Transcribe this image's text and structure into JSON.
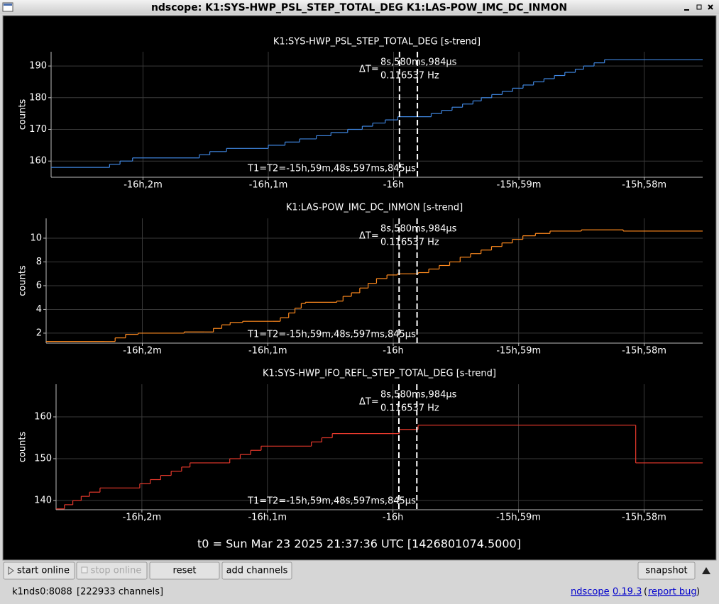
{
  "window": {
    "title": "ndscope: K1:SYS-HWP_PSL_STEP_TOTAL_DEG K1:LAS-POW_IMC_DC_INMON"
  },
  "chart_data": [
    {
      "type": "line",
      "drawstyle": "steps-post",
      "title": "K1:SYS-HWP_PSL_STEP_TOTAL_DEG [s-trend]",
      "ylabel": "counts",
      "color": "#3f86e0",
      "grid": true,
      "xlim": [
        -57764,
        -57452
      ],
      "xticks": [
        {
          "value": -57720,
          "label": "-16h,2m"
        },
        {
          "value": -57660,
          "label": "-16h,1m"
        },
        {
          "value": -57600,
          "label": "-16h"
        },
        {
          "value": -57540,
          "label": "-15h,59m"
        },
        {
          "value": -57480,
          "label": "-15h,58m"
        }
      ],
      "ylim": [
        154.9,
        194.5
      ],
      "yticks": [
        160,
        170,
        180,
        190
      ],
      "x": [
        -57764,
        -57736,
        -57731,
        -57725,
        -57693,
        -57688,
        -57680,
        -57660,
        -57652,
        -57645,
        -57637,
        -57630,
        -57622,
        -57615,
        -57610,
        -57604,
        -57598,
        -57582,
        -57577,
        -57572,
        -57567,
        -57562,
        -57558,
        -57553,
        -57548,
        -57543,
        -57538,
        -57533,
        -57528,
        -57523,
        -57518,
        -57513,
        -57509,
        -57504,
        -57499
      ],
      "values": [
        158,
        159,
        160,
        161,
        162,
        163,
        164,
        165,
        166,
        167,
        168,
        169,
        170,
        171,
        172,
        173,
        174,
        175,
        176,
        177,
        178,
        179,
        180,
        181,
        182,
        183,
        184,
        185,
        186,
        187,
        188,
        189,
        190,
        191,
        192
      ],
      "cursors": [
        -57597.18,
        -57588.6
      ],
      "delta_label": "ΔT=",
      "delta": "8s,580ms,984µs",
      "freq": "0.116537 Hz",
      "t_label": "T1=T2=-15h,59m,48s,597ms,845µs"
    },
    {
      "type": "line",
      "drawstyle": "steps-post",
      "title": "K1:LAS-POW_IMC_DC_INMON [s-trend]",
      "ylabel": "counts",
      "color": "#ff8a1e",
      "grid": true,
      "xlim": [
        -57766,
        -57452
      ],
      "xticks": [
        {
          "value": -57720,
          "label": "-16h,2m"
        },
        {
          "value": -57660,
          "label": "-16h,1m"
        },
        {
          "value": -57600,
          "label": "-16h"
        },
        {
          "value": -57540,
          "label": "-15h,59m"
        },
        {
          "value": -57480,
          "label": "-15h,58m"
        }
      ],
      "ylim": [
        1.16,
        11.67
      ],
      "yticks": [
        2,
        4,
        6,
        8,
        10
      ],
      "x": [
        -57766,
        -57738,
        -57733,
        -57728,
        -57722,
        -57700,
        -57690,
        -57686,
        -57682,
        -57678,
        -57672,
        -57658,
        -57654,
        -57650,
        -57647,
        -57644,
        -57642,
        -57627,
        -57624,
        -57620,
        -57616,
        -57612,
        -57608,
        -57603,
        -57598,
        -57588,
        -57583,
        -57578,
        -57573,
        -57568,
        -57563,
        -57558,
        -57553,
        -57548,
        -57543,
        -57538,
        -57532,
        -57525,
        -57510,
        -57490,
        -57470
      ],
      "values": [
        1.3,
        1.3,
        1.6,
        1.9,
        2.0,
        2.1,
        2.1,
        2.4,
        2.7,
        2.9,
        3.0,
        3.0,
        3.3,
        3.7,
        4.1,
        4.5,
        4.6,
        4.7,
        5.1,
        5.4,
        5.8,
        6.2,
        6.6,
        6.9,
        7.0,
        7.1,
        7.4,
        7.7,
        8.0,
        8.4,
        8.7,
        9.0,
        9.3,
        9.6,
        9.9,
        10.2,
        10.4,
        10.6,
        10.7,
        10.6,
        10.6
      ],
      "cursors": [
        -57597.18,
        -57588.6
      ],
      "delta_label": "ΔT=",
      "delta": "8s,580ms,984µs",
      "freq": "0.116537 Hz",
      "t_label": "T1=T2=-15h,59m,48s,597ms,845µs"
    },
    {
      "type": "line",
      "drawstyle": "steps-post",
      "title": "K1:SYS-HWP_IFO_REFL_STEP_TOTAL_DEG [s-trend]",
      "ylabel": "counts",
      "color": "#e8392c",
      "grid": true,
      "xlim": [
        -57761,
        -57452
      ],
      "xticks": [
        {
          "value": -57720,
          "label": "-16h,2m"
        },
        {
          "value": -57660,
          "label": "-16h,1m"
        },
        {
          "value": -57600,
          "label": "-16h"
        },
        {
          "value": -57540,
          "label": "-15h,59m"
        },
        {
          "value": -57480,
          "label": "-15h,58m"
        }
      ],
      "ylim": [
        137.8,
        167.8
      ],
      "yticks": [
        140,
        150,
        160
      ],
      "x": [
        -57761,
        -57757,
        -57753,
        -57749,
        -57745,
        -57740,
        -57721,
        -57716,
        -57711,
        -57706,
        -57701,
        -57697,
        -57678,
        -57673,
        -57668,
        -57663,
        -57639,
        -57634,
        -57629,
        -57597,
        -57588,
        -57484
      ],
      "values": [
        138,
        139,
        140,
        141,
        142,
        143,
        144,
        145,
        146,
        147,
        148,
        149,
        150,
        151,
        152,
        153,
        154,
        155,
        156,
        157,
        158,
        149
      ],
      "cursors": [
        -57597.18,
        -57588.6
      ],
      "delta_label": "ΔT=",
      "delta": "8s,580ms,984µs",
      "freq": "0.116537 Hz",
      "t_label": "T1=T2=-15h,59m,48s,597ms,845µs"
    }
  ],
  "t0": "t0 = Sun Mar 23 2025 21:37:36 UTC [1426801074.5000]",
  "buttons": [
    "start online",
    "stop online",
    "reset",
    "add channels",
    "snapshot"
  ],
  "status": {
    "server": "k1nds0:8088",
    "channels": "[222933 channels]",
    "app": "ndscope",
    "version": "0.19.3",
    "open": "(",
    "bug": "report bug",
    "close": ")"
  }
}
